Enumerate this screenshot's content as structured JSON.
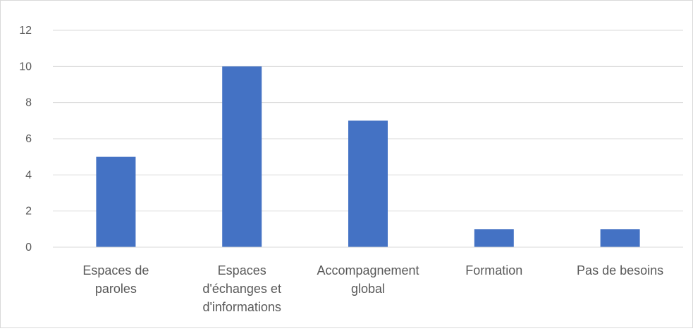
{
  "chart_data": {
    "type": "bar",
    "title": "",
    "xlabel": "",
    "ylabel": "",
    "categories": [
      [
        "Espaces de",
        "paroles"
      ],
      [
        "Espaces",
        "d'échanges et",
        "d'informations"
      ],
      [
        "Accompagnement",
        "global"
      ],
      [
        "Formation"
      ],
      [
        "Pas de besoins"
      ]
    ],
    "values": [
      5,
      10,
      7,
      1,
      1
    ],
    "ylim": [
      0,
      12
    ],
    "yticks": [
      "0",
      "2",
      "4",
      "6",
      "8",
      "10",
      "12"
    ],
    "grid": true,
    "legend": "none",
    "colors": {
      "bar": "#4472c4",
      "grid": "#d9d9d9",
      "axis": "#d9d9d9",
      "text": "#595959"
    }
  }
}
